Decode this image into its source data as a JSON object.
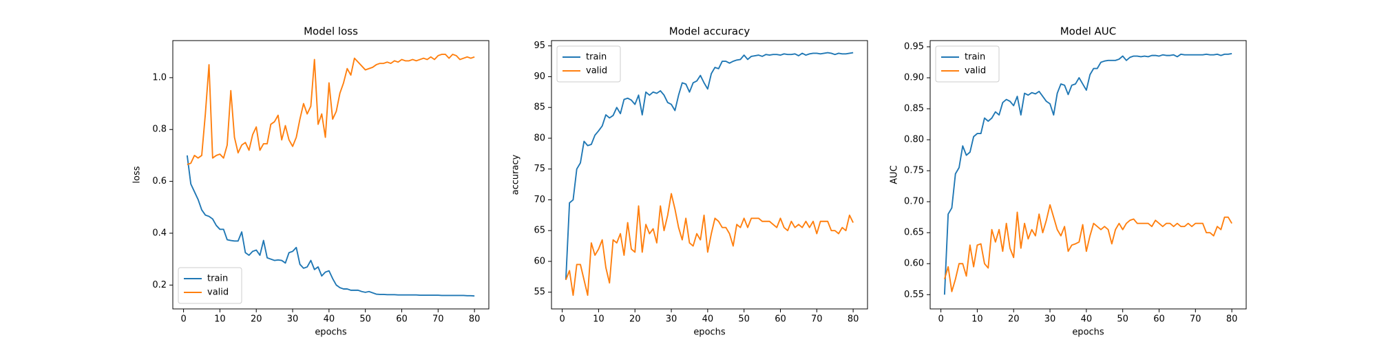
{
  "chart_data": [
    {
      "type": "line",
      "title": "Model loss",
      "x_label": "epochs",
      "y_label": "loss",
      "x": [
        1,
        2,
        3,
        4,
        5,
        6,
        7,
        8,
        9,
        10,
        11,
        12,
        13,
        14,
        15,
        16,
        17,
        18,
        19,
        20,
        21,
        22,
        23,
        24,
        25,
        26,
        27,
        28,
        29,
        30,
        31,
        32,
        33,
        34,
        35,
        36,
        37,
        38,
        39,
        40,
        41,
        42,
        43,
        44,
        45,
        46,
        47,
        48,
        49,
        50,
        51,
        52,
        53,
        54,
        55,
        56,
        57,
        58,
        59,
        60,
        61,
        62,
        63,
        64,
        65,
        66,
        67,
        68,
        69,
        70,
        71,
        72,
        73,
        74,
        75,
        76,
        77,
        78,
        79,
        80
      ],
      "series": [
        {
          "name": "train",
          "color": "#1f77b4",
          "values": [
            0.7,
            0.59,
            0.56,
            0.53,
            0.49,
            0.47,
            0.465,
            0.455,
            0.43,
            0.415,
            0.415,
            0.375,
            0.372,
            0.37,
            0.37,
            0.405,
            0.325,
            0.315,
            0.33,
            0.335,
            0.315,
            0.372,
            0.305,
            0.3,
            0.295,
            0.297,
            0.295,
            0.285,
            0.325,
            0.33,
            0.345,
            0.28,
            0.265,
            0.27,
            0.295,
            0.26,
            0.27,
            0.235,
            0.25,
            0.255,
            0.225,
            0.2,
            0.19,
            0.185,
            0.185,
            0.18,
            0.18,
            0.18,
            0.175,
            0.172,
            0.175,
            0.17,
            0.165,
            0.164,
            0.164,
            0.163,
            0.163,
            0.163,
            0.162,
            0.162,
            0.162,
            0.162,
            0.162,
            0.162,
            0.161,
            0.161,
            0.161,
            0.161,
            0.161,
            0.161,
            0.16,
            0.16,
            0.16,
            0.16,
            0.16,
            0.16,
            0.16,
            0.159,
            0.159,
            0.158
          ]
        },
        {
          "name": "valid",
          "color": "#ff7f0e",
          "values": [
            0.665,
            0.67,
            0.7,
            0.69,
            0.7,
            0.86,
            1.05,
            0.69,
            0.7,
            0.705,
            0.69,
            0.74,
            0.95,
            0.77,
            0.71,
            0.74,
            0.75,
            0.72,
            0.78,
            0.81,
            0.72,
            0.745,
            0.745,
            0.82,
            0.83,
            0.855,
            0.76,
            0.815,
            0.76,
            0.735,
            0.77,
            0.84,
            0.9,
            0.86,
            0.89,
            1.07,
            0.82,
            0.86,
            0.77,
            0.98,
            0.84,
            0.87,
            0.94,
            0.98,
            1.035,
            1.01,
            1.075,
            1.06,
            1.045,
            1.03,
            1.035,
            1.04,
            1.05,
            1.055,
            1.055,
            1.06,
            1.055,
            1.065,
            1.06,
            1.07,
            1.065,
            1.065,
            1.07,
            1.065,
            1.07,
            1.075,
            1.07,
            1.08,
            1.07,
            1.085,
            1.09,
            1.09,
            1.075,
            1.09,
            1.085,
            1.07,
            1.075,
            1.08,
            1.075,
            1.08
          ]
        }
      ],
      "xlim": [
        -2.95,
        83.95
      ],
      "xticks": [
        0,
        10,
        20,
        30,
        40,
        50,
        60,
        70,
        80
      ],
      "ylim": [
        0.108,
        1.143
      ],
      "yticks": [
        0.2,
        0.4,
        0.6,
        0.8,
        {
          "value": 1,
          "label": "1.0"
        }
      ],
      "grid": false,
      "legend": "lower left"
    },
    {
      "type": "line",
      "title": "Model accuracy",
      "x_label": "epochs",
      "y_label": "accuracy",
      "x": [
        1,
        2,
        3,
        4,
        5,
        6,
        7,
        8,
        9,
        10,
        11,
        12,
        13,
        14,
        15,
        16,
        17,
        18,
        19,
        20,
        21,
        22,
        23,
        24,
        25,
        26,
        27,
        28,
        29,
        30,
        31,
        32,
        33,
        34,
        35,
        36,
        37,
        38,
        39,
        40,
        41,
        42,
        43,
        44,
        45,
        46,
        47,
        48,
        49,
        50,
        51,
        52,
        53,
        54,
        55,
        56,
        57,
        58,
        59,
        60,
        61,
        62,
        63,
        64,
        65,
        66,
        67,
        68,
        69,
        70,
        71,
        72,
        73,
        74,
        75,
        76,
        77,
        78,
        79,
        80
      ],
      "series": [
        {
          "name": "train",
          "color": "#1f77b4",
          "values": [
            57,
            69.5,
            70,
            75,
            76,
            79.5,
            78.8,
            79,
            80.5,
            81.2,
            82,
            83.8,
            83.3,
            83.7,
            85,
            84,
            86.3,
            86.5,
            86.2,
            85.5,
            87,
            83.8,
            87.5,
            87,
            87.5,
            87.3,
            87.7,
            87,
            85.8,
            85.5,
            84.5,
            87,
            89,
            88.8,
            87.5,
            89,
            89.3,
            90.2,
            89,
            88,
            90.5,
            91.5,
            91.3,
            92.5,
            92.5,
            92.2,
            92.5,
            92.7,
            92.8,
            93.5,
            92.8,
            93.3,
            93.4,
            93.5,
            93.3,
            93.6,
            93.5,
            93.6,
            93.6,
            93.5,
            93.7,
            93.6,
            93.6,
            93.7,
            93.4,
            93.8,
            93.5,
            93.7,
            93.8,
            93.8,
            93.7,
            93.8,
            93.9,
            93.8,
            93.6,
            93.8,
            93.7,
            93.7,
            93.8,
            93.9
          ]
        },
        {
          "name": "valid",
          "color": "#ff7f0e",
          "values": [
            57,
            58.5,
            54.5,
            59.5,
            59.5,
            57,
            54.5,
            63,
            61,
            62,
            63.5,
            59,
            56.5,
            63.5,
            63,
            64.5,
            61,
            66.3,
            62,
            61.5,
            69,
            61.5,
            66,
            64.5,
            65.3,
            63,
            69,
            65,
            67.5,
            71,
            68.5,
            65.5,
            63.5,
            67,
            63,
            62.5,
            64.5,
            63.5,
            67.5,
            61.5,
            64.5,
            67,
            66.5,
            65.5,
            65.5,
            64.5,
            62.5,
            66,
            65.5,
            67,
            65.5,
            67,
            67,
            67,
            66.5,
            66.5,
            66.5,
            66,
            65.5,
            67,
            65.5,
            65,
            66.5,
            65.5,
            66,
            65.5,
            66.5,
            65.5,
            66.5,
            64.5,
            66.5,
            66.5,
            66.5,
            65,
            65,
            64.5,
            65.5,
            65,
            67.5,
            66.3
          ]
        }
      ],
      "xlim": [
        -2.95,
        83.95
      ],
      "xticks": [
        0,
        10,
        20,
        30,
        40,
        50,
        60,
        70,
        80
      ],
      "ylim": [
        52.28,
        95.86
      ],
      "yticks": [
        55,
        60,
        65,
        70,
        75,
        80,
        85,
        90,
        95
      ],
      "grid": false,
      "legend": "upper left"
    },
    {
      "type": "line",
      "title": "Model AUC",
      "x_label": "epochs",
      "y_label": "AUC",
      "x": [
        1,
        2,
        3,
        4,
        5,
        6,
        7,
        8,
        9,
        10,
        11,
        12,
        13,
        14,
        15,
        16,
        17,
        18,
        19,
        20,
        21,
        22,
        23,
        24,
        25,
        26,
        27,
        28,
        29,
        30,
        31,
        32,
        33,
        34,
        35,
        36,
        37,
        38,
        39,
        40,
        41,
        42,
        43,
        44,
        45,
        46,
        47,
        48,
        49,
        50,
        51,
        52,
        53,
        54,
        55,
        56,
        57,
        58,
        59,
        60,
        61,
        62,
        63,
        64,
        65,
        66,
        67,
        68,
        69,
        70,
        71,
        72,
        73,
        74,
        75,
        76,
        77,
        78,
        79,
        80
      ],
      "series": [
        {
          "name": "train",
          "color": "#1f77b4",
          "values": [
            0.55,
            0.68,
            0.69,
            0.745,
            0.755,
            0.79,
            0.775,
            0.78,
            0.805,
            0.81,
            0.81,
            0.835,
            0.83,
            0.835,
            0.845,
            0.84,
            0.86,
            0.865,
            0.862,
            0.855,
            0.87,
            0.84,
            0.875,
            0.872,
            0.876,
            0.874,
            0.878,
            0.87,
            0.862,
            0.858,
            0.84,
            0.875,
            0.89,
            0.888,
            0.873,
            0.888,
            0.89,
            0.9,
            0.89,
            0.88,
            0.905,
            0.915,
            0.915,
            0.925,
            0.927,
            0.928,
            0.928,
            0.928,
            0.93,
            0.935,
            0.928,
            0.933,
            0.935,
            0.935,
            0.934,
            0.935,
            0.934,
            0.936,
            0.936,
            0.935,
            0.937,
            0.936,
            0.936,
            0.937,
            0.934,
            0.938,
            0.937,
            0.937,
            0.937,
            0.937,
            0.937,
            0.937,
            0.938,
            0.937,
            0.937,
            0.938,
            0.936,
            0.938,
            0.938,
            0.939
          ]
        },
        {
          "name": "valid",
          "color": "#ff7f0e",
          "values": [
            0.575,
            0.595,
            0.555,
            0.575,
            0.6,
            0.6,
            0.58,
            0.63,
            0.595,
            0.63,
            0.632,
            0.6,
            0.593,
            0.655,
            0.635,
            0.655,
            0.62,
            0.665,
            0.625,
            0.61,
            0.683,
            0.625,
            0.665,
            0.64,
            0.655,
            0.645,
            0.68,
            0.65,
            0.67,
            0.695,
            0.675,
            0.655,
            0.645,
            0.66,
            0.62,
            0.63,
            0.632,
            0.635,
            0.663,
            0.62,
            0.645,
            0.665,
            0.66,
            0.655,
            0.66,
            0.655,
            0.632,
            0.655,
            0.665,
            0.655,
            0.665,
            0.67,
            0.672,
            0.665,
            0.665,
            0.665,
            0.665,
            0.66,
            0.67,
            0.665,
            0.66,
            0.665,
            0.665,
            0.66,
            0.665,
            0.66,
            0.66,
            0.665,
            0.66,
            0.665,
            0.665,
            0.665,
            0.65,
            0.65,
            0.645,
            0.66,
            0.655,
            0.675,
            0.675,
            0.665
          ]
        }
      ],
      "xlim": [
        -2.95,
        83.95
      ],
      "xticks": [
        0,
        10,
        20,
        30,
        40,
        50,
        60,
        70,
        80
      ],
      "ylim": [
        0.527,
        0.96
      ],
      "yticks": [
        0.55,
        {
          "value": 0.6,
          "label": "0.60"
        },
        0.65,
        {
          "value": 0.7,
          "label": "0.70"
        },
        0.75,
        {
          "value": 0.8,
          "label": "0.80"
        },
        0.85,
        {
          "value": 0.9,
          "label": "0.90"
        },
        0.95
      ],
      "grid": false,
      "legend": "upper left"
    }
  ]
}
